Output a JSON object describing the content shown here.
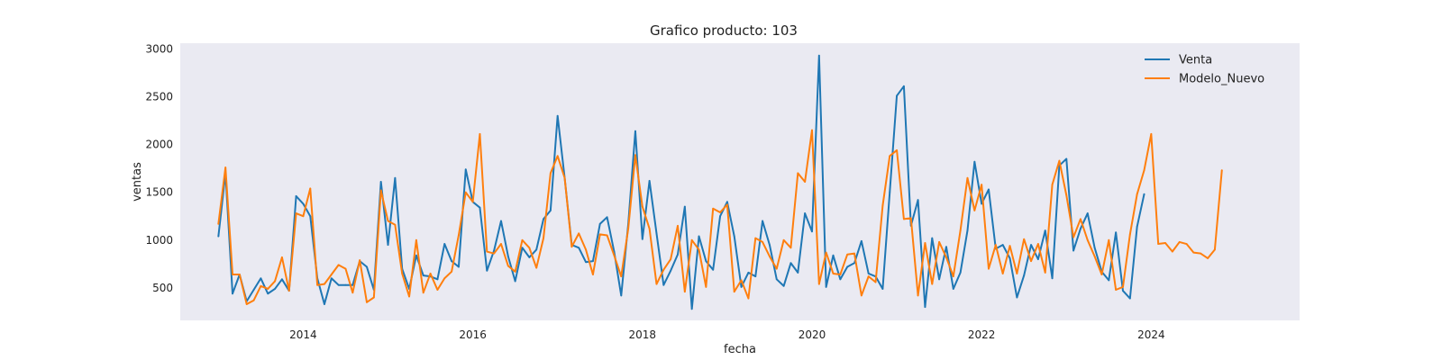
{
  "chart_data": {
    "type": "line",
    "title": "Grafico producto: 103",
    "xlabel": "fecha",
    "ylabel": "ventas",
    "grid": false,
    "legend": "top-right",
    "xlim": [
      2012.55,
      2025.75
    ],
    "ylim": [
      160,
      3060
    ],
    "x_ticks": [
      2014,
      2016,
      2018,
      2020,
      2022,
      2024
    ],
    "x_tick_labels": [
      "2014",
      "2016",
      "2018",
      "2020",
      "2022",
      "2024"
    ],
    "y_ticks": [
      500,
      1000,
      1500,
      2000,
      2500,
      3000
    ],
    "y_tick_labels": [
      "500",
      "1000",
      "1500",
      "2000",
      "2500",
      "3000"
    ],
    "x_start": 2013.0,
    "x_step_months": 1,
    "background": "#eaeaf2",
    "series": [
      {
        "name": "Venta",
        "color": "#1f77b4",
        "values": [
          1040,
          1700,
          440,
          640,
          360,
          480,
          600,
          440,
          490,
          590,
          470,
          1460,
          1380,
          1250,
          600,
          330,
          600,
          530,
          530,
          530,
          780,
          720,
          480,
          1610,
          950,
          1650,
          700,
          490,
          840,
          630,
          620,
          590,
          960,
          780,
          720,
          1740,
          1400,
          1340,
          680,
          890,
          1200,
          830,
          570,
          920,
          820,
          900,
          1220,
          1310,
          2300,
          1650,
          950,
          920,
          770,
          780,
          1170,
          1240,
          880,
          420,
          1170,
          2140,
          1010,
          1620,
          1070,
          530,
          680,
          850,
          1350,
          280,
          1040,
          780,
          690,
          1250,
          1400,
          1040,
          510,
          660,
          620,
          1200,
          950,
          590,
          520,
          760,
          660,
          1280,
          1090,
          2930,
          510,
          840,
          590,
          720,
          760,
          990,
          650,
          620,
          490,
          1500,
          2510,
          2610,
          1150,
          1420,
          300,
          1020,
          590,
          930,
          490,
          660,
          1100,
          1820,
          1380,
          1530,
          910,
          950,
          810,
          400,
          630,
          950,
          800,
          1100,
          600,
          1780,
          1850,
          890,
          1120,
          1280,
          920,
          670,
          580,
          1080,
          470,
          390,
          1140,
          1480,
          null,
          null,
          null,
          null,
          null,
          null,
          null,
          null,
          null,
          null,
          null,
          null
        ]
      },
      {
        "name": "Modelo_Nuevo",
        "color": "#ff7f0e",
        "values": [
          1170,
          1760,
          640,
          640,
          330,
          370,
          520,
          490,
          570,
          820,
          470,
          1280,
          1250,
          1540,
          530,
          540,
          640,
          740,
          700,
          450,
          790,
          350,
          400,
          1520,
          1200,
          1160,
          650,
          410,
          1000,
          450,
          650,
          480,
          600,
          670,
          1050,
          1500,
          1400,
          2110,
          880,
          860,
          960,
          730,
          670,
          1000,
          920,
          710,
          1020,
          1700,
          1880,
          1650,
          930,
          1070,
          900,
          640,
          1060,
          1050,
          840,
          620,
          1120,
          1890,
          1350,
          1120,
          540,
          690,
          800,
          1150,
          460,
          1000,
          900,
          510,
          1330,
          1290,
          1370,
          460,
          580,
          390,
          1020,
          980,
          830,
          700,
          1000,
          920,
          1700,
          1610,
          2150,
          540,
          870,
          650,
          640,
          850,
          860,
          420,
          620,
          560,
          1360,
          1880,
          1940,
          1220,
          1230,
          420,
          970,
          540,
          980,
          820,
          620,
          1100,
          1650,
          1310,
          1580,
          700,
          950,
          650,
          940,
          650,
          1010,
          780,
          960,
          660,
          1580,
          1830,
          1470,
          1030,
          1220,
          1000,
          830,
          640,
          1000,
          480,
          510,
          1060,
          1480,
          1730,
          2110,
          960,
          970,
          880,
          980,
          960,
          870,
          860,
          810,
          900,
          1730
        ]
      }
    ]
  }
}
